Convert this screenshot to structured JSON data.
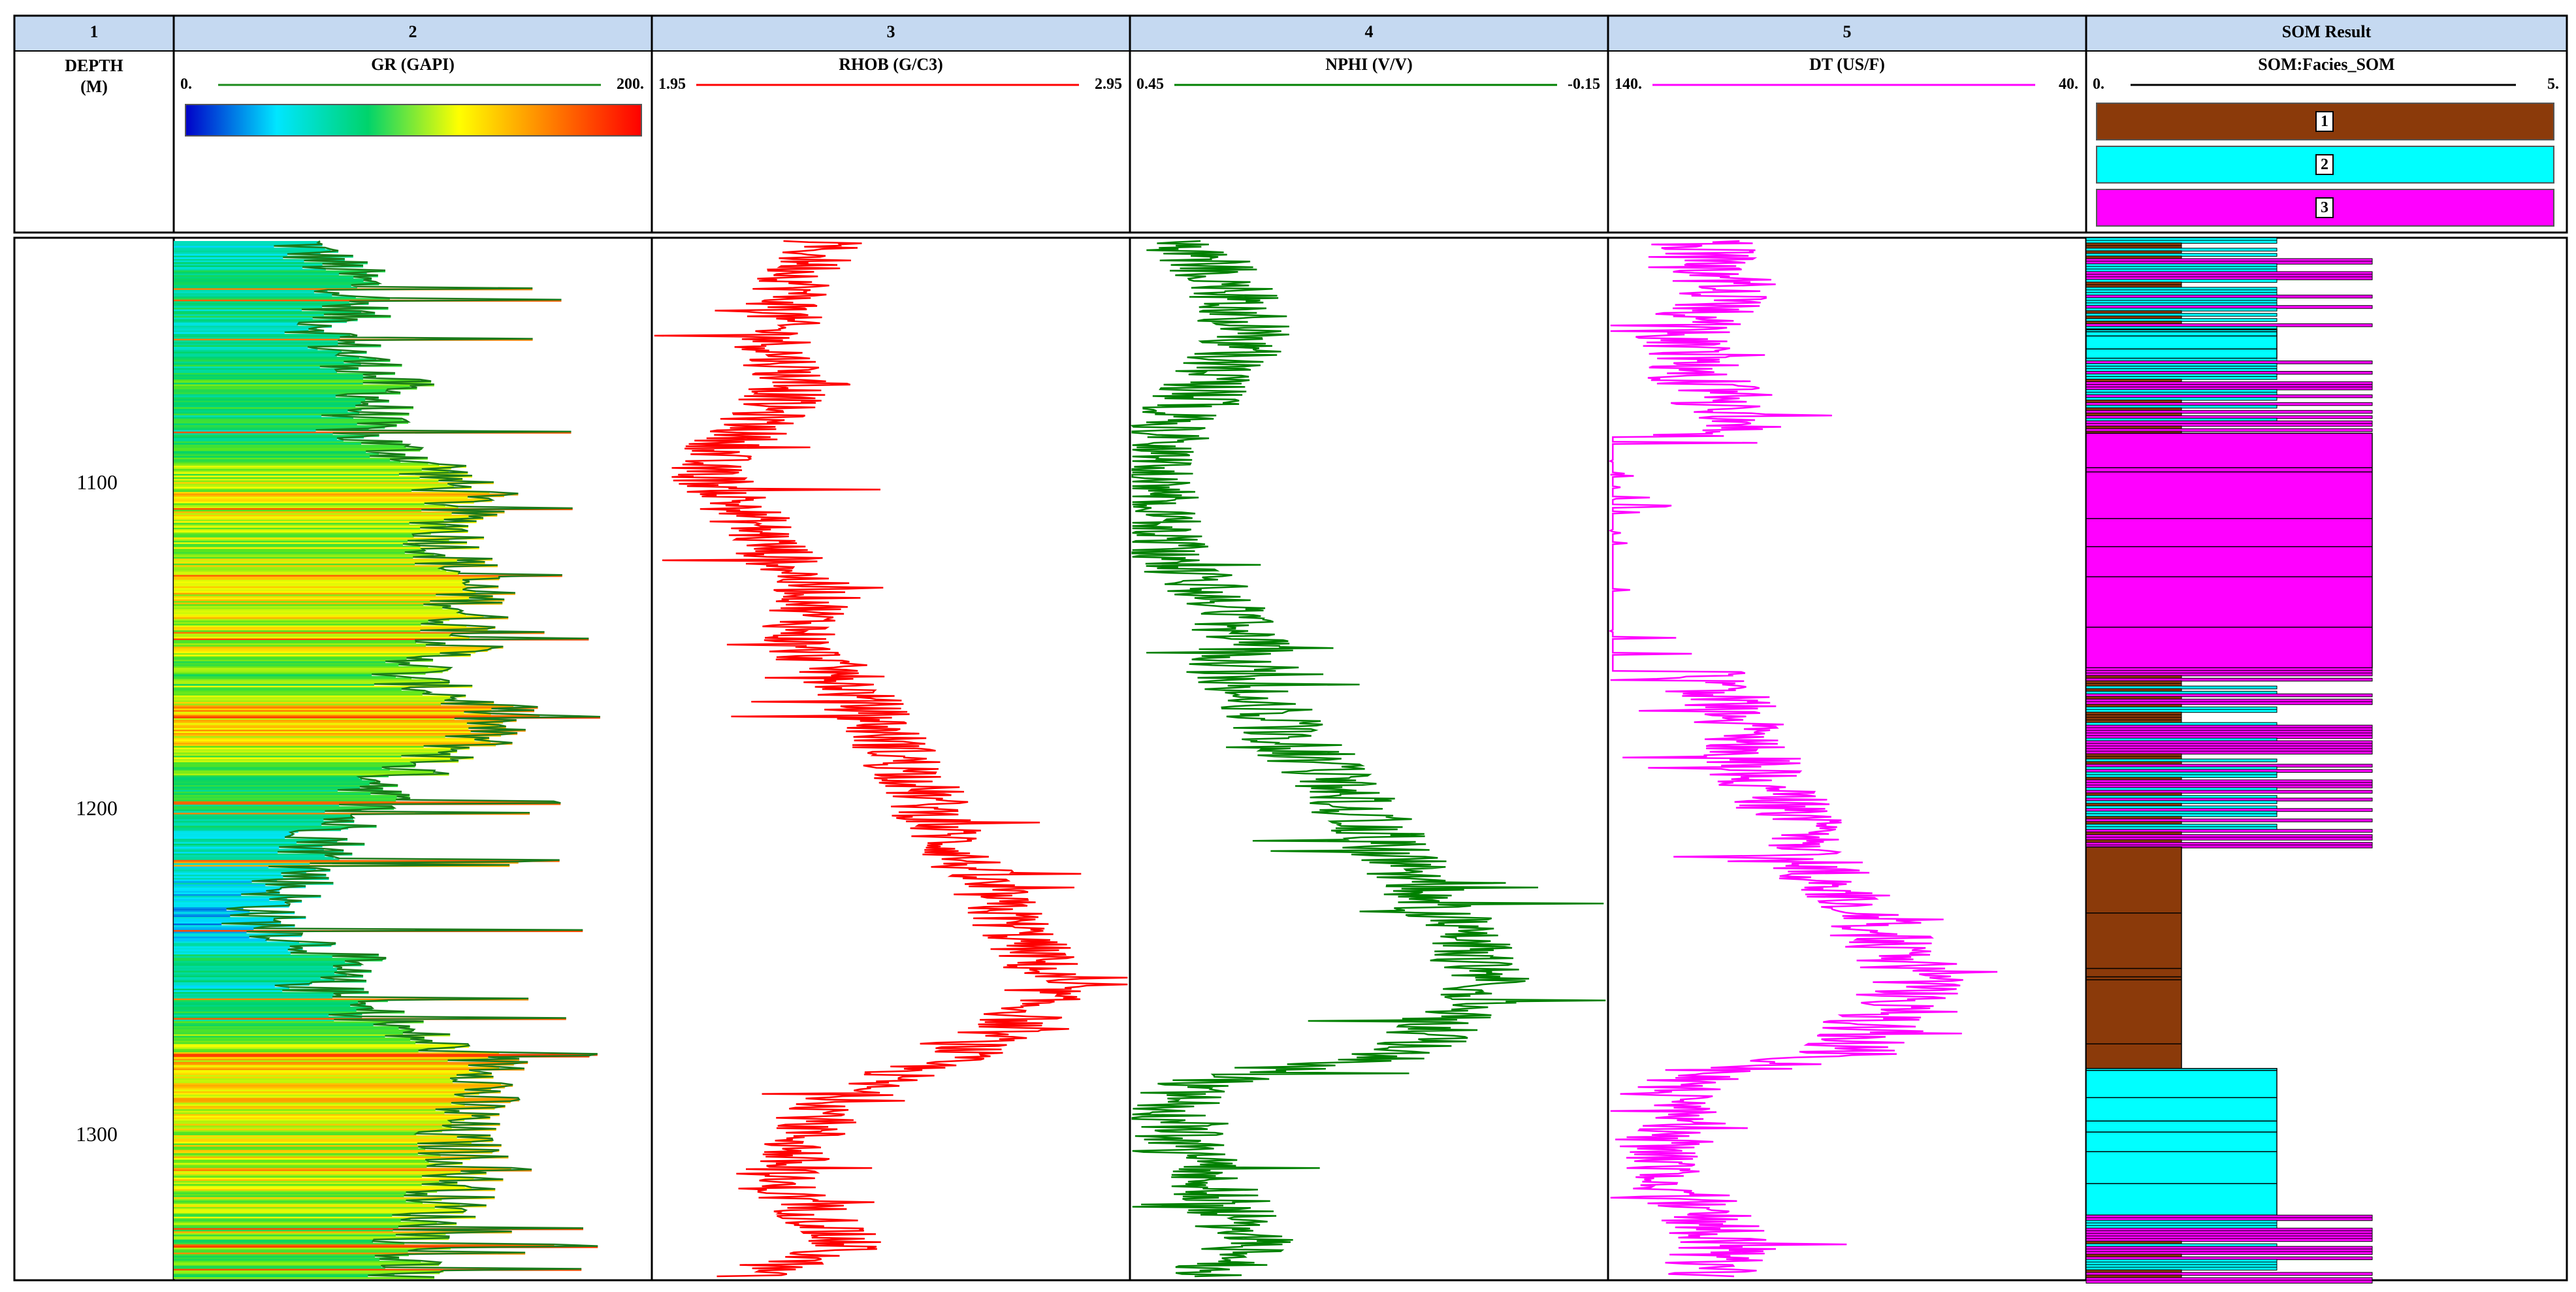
{
  "tracks": [
    {
      "number": "1",
      "title": "DEPTH\n(M)"
    },
    {
      "number": "2",
      "curve": "GR (GAPI)",
      "min": "0.",
      "max": "200.",
      "color": "#1a8a1a"
    },
    {
      "number": "3",
      "curve": "RHOB (G/C3)",
      "min": "1.95",
      "max": "2.95",
      "color": "#ff0000"
    },
    {
      "number": "4",
      "curve": "NPHI (V/V)",
      "min": "0.45",
      "max": "-0.15",
      "color": "#008000"
    },
    {
      "number": "5",
      "curve": "DT (US/F)",
      "min": "140.",
      "max": "40.",
      "color": "#ff00ff"
    },
    {
      "number": "SOM Result",
      "curve": "SOM:Facies_SOM",
      "min": "0.",
      "max": "5."
    }
  ],
  "depth_ticks": [
    "1100",
    "1200",
    "1300"
  ],
  "facies_legend": [
    {
      "label": "1",
      "color": "#8b3a0a"
    },
    {
      "label": "2",
      "color": "#00ffff"
    },
    {
      "label": "3",
      "color": "#ff00ff"
    }
  ],
  "chart_data": {
    "type": "line",
    "title": "",
    "y_axis": "depth (M)",
    "depth_range": [
      1025,
      1345
    ],
    "gr_colorbar": [
      "#0000c8",
      "#00e6ff",
      "#00d36b",
      "#ffff00",
      "#ff7f00",
      "#ff0000"
    ],
    "series": [
      {
        "name": "GR (GAPI)",
        "x_range": [
          0,
          200
        ],
        "points": [
          [
            1028,
            55
          ],
          [
            1040,
            80
          ],
          [
            1055,
            65
          ],
          [
            1070,
            90
          ],
          [
            1085,
            75
          ],
          [
            1095,
            110
          ],
          [
            1105,
            120
          ],
          [
            1120,
            115
          ],
          [
            1135,
            125
          ],
          [
            1150,
            120
          ],
          [
            1160,
            95
          ],
          [
            1170,
            135
          ],
          [
            1180,
            125
          ],
          [
            1190,
            95
          ],
          [
            1205,
            70
          ],
          [
            1220,
            55
          ],
          [
            1235,
            35
          ],
          [
            1245,
            70
          ],
          [
            1255,
            60
          ],
          [
            1270,
            100
          ],
          [
            1280,
            140
          ],
          [
            1290,
            125
          ],
          [
            1300,
            115
          ],
          [
            1310,
            125
          ],
          [
            1320,
            115
          ],
          [
            1330,
            105
          ],
          [
            1343,
            95
          ]
        ]
      },
      {
        "name": "RHOB (G/C3)",
        "x_range": [
          1.95,
          2.95
        ],
        "points": [
          [
            1028,
            2.3
          ],
          [
            1040,
            2.25
          ],
          [
            1055,
            2.2
          ],
          [
            1070,
            2.25
          ],
          [
            1085,
            2.15
          ],
          [
            1095,
            2.05
          ],
          [
            1105,
            2.12
          ],
          [
            1120,
            2.2
          ],
          [
            1135,
            2.3
          ],
          [
            1150,
            2.25
          ],
          [
            1160,
            2.35
          ],
          [
            1170,
            2.4
          ],
          [
            1180,
            2.45
          ],
          [
            1190,
            2.5
          ],
          [
            1205,
            2.55
          ],
          [
            1220,
            2.62
          ],
          [
            1235,
            2.7
          ],
          [
            1245,
            2.75
          ],
          [
            1255,
            2.78
          ],
          [
            1265,
            2.72
          ],
          [
            1275,
            2.6
          ],
          [
            1285,
            2.4
          ],
          [
            1295,
            2.3
          ],
          [
            1305,
            2.25
          ],
          [
            1315,
            2.2
          ],
          [
            1325,
            2.3
          ],
          [
            1335,
            2.35
          ],
          [
            1343,
            2.15
          ]
        ]
      },
      {
        "name": "NPHI (V/V)",
        "x_range": [
          0.45,
          -0.15
        ],
        "points": [
          [
            1028,
            0.38
          ],
          [
            1040,
            0.32
          ],
          [
            1055,
            0.3
          ],
          [
            1070,
            0.35
          ],
          [
            1085,
            0.4
          ],
          [
            1095,
            0.43
          ],
          [
            1105,
            0.42
          ],
          [
            1120,
            0.41
          ],
          [
            1135,
            0.35
          ],
          [
            1150,
            0.3
          ],
          [
            1160,
            0.33
          ],
          [
            1170,
            0.28
          ],
          [
            1180,
            0.25
          ],
          [
            1190,
            0.2
          ],
          [
            1205,
            0.15
          ],
          [
            1220,
            0.1
          ],
          [
            1235,
            0.05
          ],
          [
            1245,
            0.02
          ],
          [
            1255,
            0.0
          ],
          [
            1265,
            0.05
          ],
          [
            1275,
            0.1
          ],
          [
            1285,
            0.38
          ],
          [
            1295,
            0.4
          ],
          [
            1305,
            0.38
          ],
          [
            1315,
            0.35
          ],
          [
            1325,
            0.32
          ],
          [
            1335,
            0.3
          ],
          [
            1343,
            0.35
          ]
        ]
      },
      {
        "name": "DT (US/F)",
        "x_range": [
          140,
          40
        ],
        "points": [
          [
            1028,
            120
          ],
          [
            1040,
            115
          ],
          [
            1055,
            125
          ],
          [
            1070,
            120
          ],
          [
            1085,
            110
          ],
          [
            1095,
            135
          ],
          [
            1105,
            137
          ],
          [
            1120,
            135
          ],
          [
            1135,
            138
          ],
          [
            1150,
            136
          ],
          [
            1160,
            120
          ],
          [
            1170,
            115
          ],
          [
            1180,
            112
          ],
          [
            1190,
            108
          ],
          [
            1205,
            100
          ],
          [
            1220,
            95
          ],
          [
            1235,
            85
          ],
          [
            1245,
            80
          ],
          [
            1255,
            75
          ],
          [
            1265,
            85
          ],
          [
            1275,
            90
          ],
          [
            1285,
            130
          ],
          [
            1295,
            125
          ],
          [
            1305,
            130
          ],
          [
            1315,
            125
          ],
          [
            1325,
            120
          ],
          [
            1335,
            115
          ],
          [
            1343,
            120
          ]
        ]
      }
    ],
    "facies": [
      {
        "top": 1025,
        "base": 1053,
        "facies": "mixed"
      },
      {
        "top": 1053,
        "base": 1062,
        "facies": "2"
      },
      {
        "top": 1062,
        "base": 1085,
        "facies": "mixed"
      },
      {
        "top": 1085,
        "base": 1157,
        "facies": "3"
      },
      {
        "top": 1157,
        "base": 1212,
        "facies": "mixed"
      },
      {
        "top": 1212,
        "base": 1280,
        "facies": "1"
      },
      {
        "top": 1280,
        "base": 1325,
        "facies": "2"
      },
      {
        "top": 1325,
        "base": 1345,
        "facies": "mixed"
      }
    ]
  }
}
